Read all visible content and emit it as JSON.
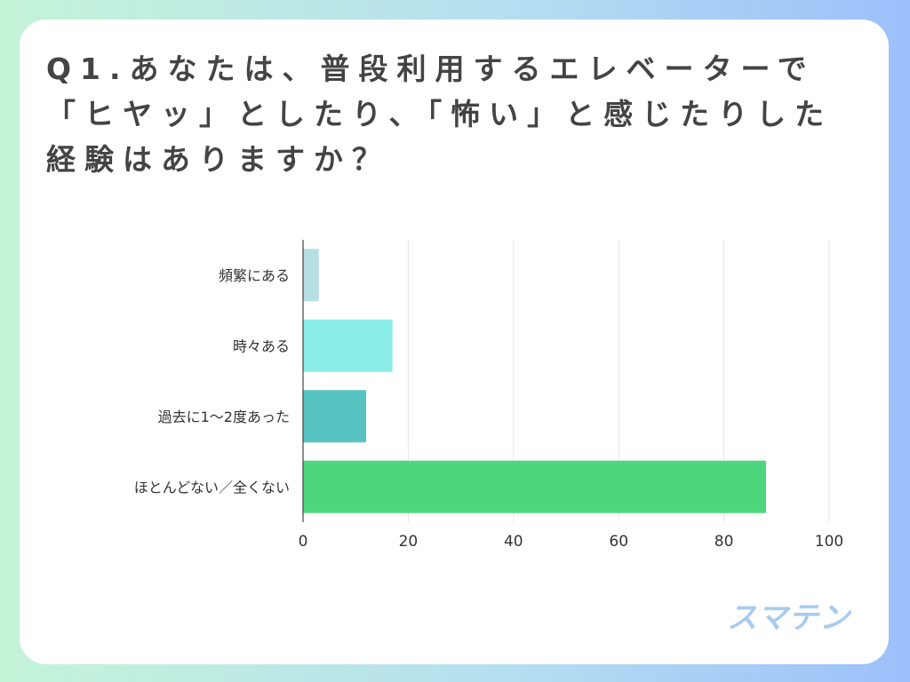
{
  "title_lines": [
    "Q1.あなたは、普段利用するエレベーターで",
    "「ヒヤッ」としたり、「怖い」と感じたりした",
    "経験はありますか？"
  ],
  "logo": "スマテン",
  "chart_data": {
    "type": "bar",
    "orientation": "horizontal",
    "title": "Q1.あなたは、普段利用するエレベーターで「ヒヤッ」としたり、「怖い」と感じたりした経験はありますか？",
    "categories": [
      "頻繁にある",
      "時々ある",
      "過去に1〜2度あった",
      "ほとんどない／全くない"
    ],
    "values": [
      3,
      17,
      12,
      88
    ],
    "colors": [
      "#b5dfe2",
      "#8aede6",
      "#57c4c2",
      "#4dd67b"
    ],
    "xlabel": "",
    "ylabel": "",
    "xlim": [
      0,
      100
    ],
    "xticks": [
      0,
      20,
      40,
      60,
      80,
      100
    ],
    "grid": true,
    "legend": "none"
  }
}
